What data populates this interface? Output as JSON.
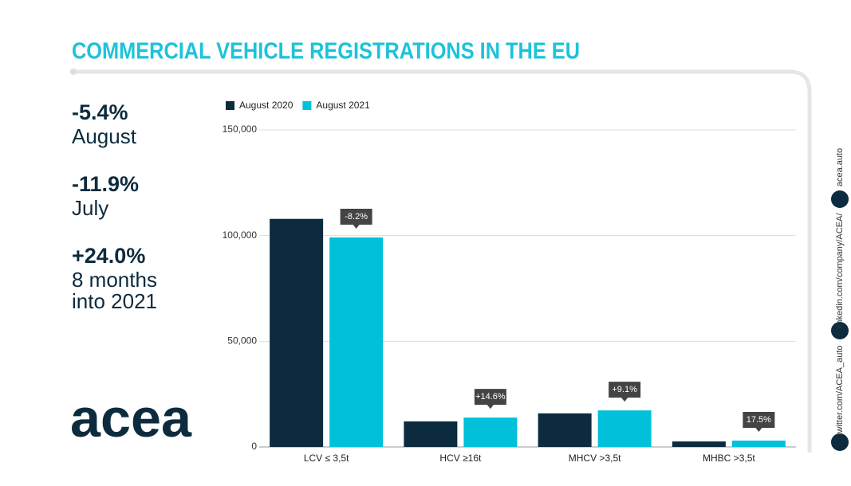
{
  "title": "COMMERCIAL VEHICLE REGISTRATIONS IN THE EU",
  "stats": [
    {
      "value": "-5.4%",
      "lines": [
        "August"
      ]
    },
    {
      "value": "-11.9%",
      "lines": [
        "July"
      ]
    },
    {
      "value": "+24.0%",
      "lines": [
        "8 months",
        "into 2021"
      ]
    }
  ],
  "logo": "acea",
  "social": [
    "acea.auto",
    "linkedin.com/company/ACEA/",
    "twitter.com/ACEA_auto"
  ],
  "chart_data": {
    "type": "bar",
    "categories": [
      "LCV ≤ 3,5t",
      "HCV ≥16t",
      "MHCV >3,5t",
      "MHBC >3,5t"
    ],
    "series": [
      {
        "name": "August 2020",
        "color": "#0d2b3e",
        "values": [
          107900,
          12100,
          15900,
          2600
        ]
      },
      {
        "name": "August 2021",
        "color": "#00c1d9",
        "values": [
          99100,
          13900,
          17300,
          3000
        ]
      }
    ],
    "annotations": [
      "-8.2%",
      "+14.6%",
      "+9.1%",
      "17.5%"
    ],
    "ylim": [
      0,
      150000
    ],
    "yticks": [
      0,
      {
        "value": 50000,
        "label": "50,000"
      },
      {
        "value": 100000,
        "label": "100,000"
      },
      {
        "value": 150000,
        "label": "150,000"
      }
    ],
    "grid": true,
    "legend": "top-left"
  }
}
